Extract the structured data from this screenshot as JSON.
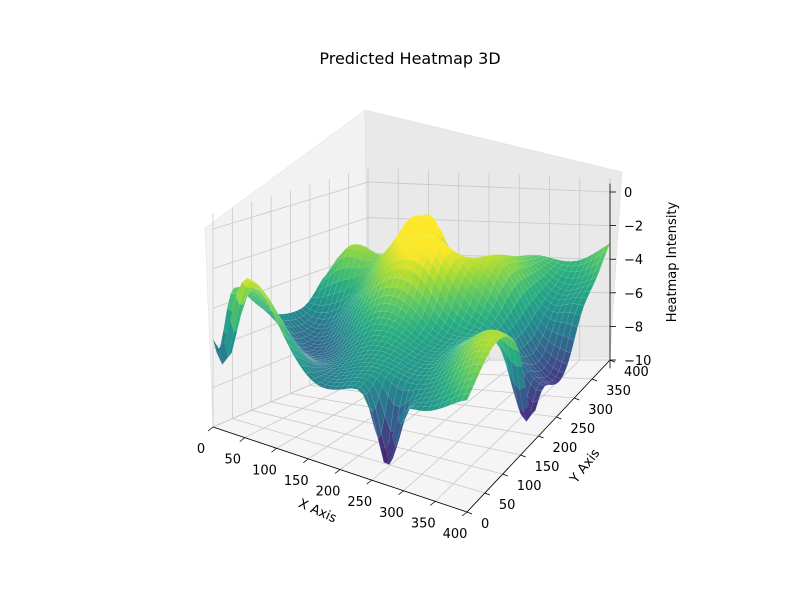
{
  "chart_data": {
    "type": "surface3d",
    "title": "Predicted Heatmap 3D",
    "xlabel": "X Axis",
    "ylabel": "Y Axis",
    "zlabel": "Heatmap Intensity",
    "colormap": "viridis",
    "xlim": [
      0,
      400
    ],
    "ylim": [
      0,
      400
    ],
    "zlim": [
      -10,
      0
    ],
    "x_ticks": [
      "0",
      "50",
      "100",
      "150",
      "200",
      "250",
      "300",
      "350",
      "400"
    ],
    "y_ticks": [
      "0",
      "50",
      "100",
      "150",
      "200",
      "250",
      "300",
      "350",
      "400"
    ],
    "z_ticks": [
      "0",
      "−2",
      "−4",
      "−6",
      "−8",
      "−10"
    ],
    "z_range_observed": [
      -10.5,
      -0.7
    ],
    "grid": true
  }
}
